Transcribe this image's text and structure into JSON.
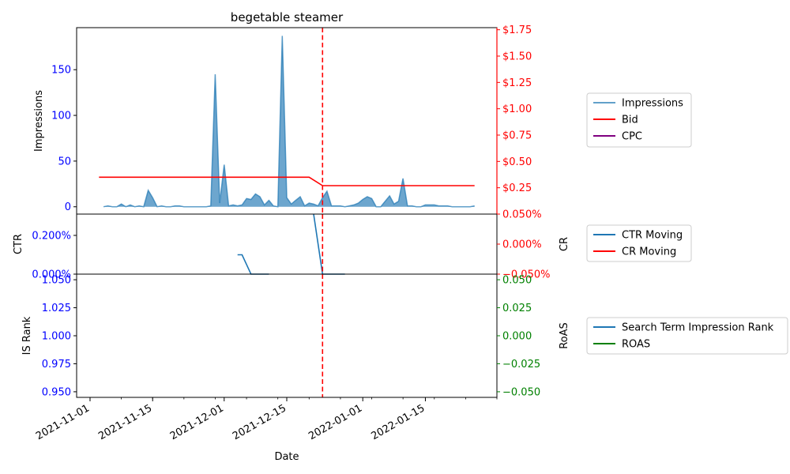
{
  "chart_data": {
    "title": "begetable steamer",
    "xlabel": "Date",
    "x_ticks": [
      "2021-11-01",
      "2021-11-15",
      "2021-12-01",
      "2021-12-15",
      "2022-01-01",
      "2022-01-15"
    ],
    "x_range": [
      "2021-11-01",
      "2022-01-31"
    ],
    "event_line_date": "2021-12-23",
    "colors": {
      "impressions": "#1f77b4",
      "bid": "#ff0000",
      "cpc": "#800080",
      "ctr": "#1f77b4",
      "cr": "#ff0000",
      "is_rank": "#1f77b4",
      "roas": "#008000",
      "left_axis": "#0000ff",
      "right_axis_top": "#ff0000",
      "right_axis_bottom": "#008000",
      "event_line": "#ff0000"
    },
    "panels": [
      {
        "type": "area+line",
        "ylabel_left": "Impressions",
        "ylim_left": [
          -8,
          196
        ],
        "yticks_left": [
          0,
          50,
          100,
          150
        ],
        "ylim_right": [
          0,
          1.77
        ],
        "yticks_right": [
          "$0.25",
          "$0.50",
          "$0.75",
          "$1.00",
          "$1.25",
          "$1.50",
          "$1.75"
        ],
        "yticks_right_values": [
          0.25,
          0.5,
          0.75,
          1.0,
          1.25,
          1.5,
          1.75
        ],
        "legend": [
          "Impressions",
          "Bid",
          "CPC"
        ],
        "legend_placement": "outside-right",
        "series": [
          {
            "name": "Impressions",
            "type": "area",
            "points": [
              [
                "2021-11-04",
                0
              ],
              [
                "2021-11-05",
                1
              ],
              [
                "2021-11-06",
                0
              ],
              [
                "2021-11-07",
                0
              ],
              [
                "2021-11-08",
                3
              ],
              [
                "2021-11-09",
                0
              ],
              [
                "2021-11-10",
                2
              ],
              [
                "2021-11-11",
                0
              ],
              [
                "2021-11-12",
                1
              ],
              [
                "2021-11-13",
                0
              ],
              [
                "2021-11-14",
                18
              ],
              [
                "2021-11-15",
                10
              ],
              [
                "2021-11-16",
                0
              ],
              [
                "2021-11-17",
                1
              ],
              [
                "2021-11-18",
                0
              ],
              [
                "2021-11-19",
                0
              ],
              [
                "2021-11-20",
                1
              ],
              [
                "2021-11-21",
                1
              ],
              [
                "2021-11-22",
                0
              ],
              [
                "2021-11-23",
                0
              ],
              [
                "2021-11-24",
                0
              ],
              [
                "2021-11-25",
                0
              ],
              [
                "2021-11-26",
                0
              ],
              [
                "2021-11-27",
                0
              ],
              [
                "2021-11-28",
                1
              ],
              [
                "2021-11-29",
                145
              ],
              [
                "2021-11-30",
                4
              ],
              [
                "2021-12-01",
                46
              ],
              [
                "2021-12-02",
                1
              ],
              [
                "2021-12-03",
                2
              ],
              [
                "2021-12-04",
                1
              ],
              [
                "2021-12-05",
                2
              ],
              [
                "2021-12-06",
                9
              ],
              [
                "2021-12-07",
                8
              ],
              [
                "2021-12-08",
                14
              ],
              [
                "2021-12-09",
                11
              ],
              [
                "2021-12-10",
                2
              ],
              [
                "2021-12-11",
                7
              ],
              [
                "2021-12-12",
                1
              ],
              [
                "2021-12-13",
                0
              ],
              [
                "2021-12-14",
                187
              ],
              [
                "2021-12-15",
                10
              ],
              [
                "2021-12-16",
                3
              ],
              [
                "2021-12-17",
                7
              ],
              [
                "2021-12-18",
                11
              ],
              [
                "2021-12-19",
                1
              ],
              [
                "2021-12-20",
                4
              ],
              [
                "2021-12-21",
                3
              ],
              [
                "2021-12-22",
                1
              ],
              [
                "2021-12-23",
                10
              ],
              [
                "2021-12-24",
                17
              ],
              [
                "2021-12-25",
                1
              ],
              [
                "2021-12-26",
                1
              ],
              [
                "2021-12-27",
                1
              ],
              [
                "2021-12-28",
                0
              ],
              [
                "2021-12-29",
                1
              ],
              [
                "2021-12-30",
                2
              ],
              [
                "2021-12-31",
                4
              ],
              [
                "2022-01-01",
                8
              ],
              [
                "2022-01-02",
                11
              ],
              [
                "2022-01-03",
                9
              ],
              [
                "2022-01-04",
                0
              ],
              [
                "2022-01-05",
                0
              ],
              [
                "2022-01-06",
                6
              ],
              [
                "2022-01-07",
                12
              ],
              [
                "2022-01-08",
                3
              ],
              [
                "2022-01-09",
                6
              ],
              [
                "2022-01-10",
                31
              ],
              [
                "2022-01-11",
                1
              ],
              [
                "2022-01-12",
                1
              ],
              [
                "2022-01-13",
                0
              ],
              [
                "2022-01-14",
                0
              ],
              [
                "2022-01-15",
                2
              ],
              [
                "2022-01-16",
                2
              ],
              [
                "2022-01-17",
                2
              ],
              [
                "2022-01-18",
                1
              ],
              [
                "2022-01-19",
                1
              ],
              [
                "2022-01-20",
                1
              ],
              [
                "2022-01-21",
                0
              ],
              [
                "2022-01-22",
                0
              ],
              [
                "2022-01-23",
                0
              ],
              [
                "2022-01-24",
                0
              ],
              [
                "2022-01-25",
                0
              ],
              [
                "2022-01-26",
                1
              ]
            ]
          },
          {
            "name": "Bid",
            "type": "line",
            "axis": "right",
            "points": [
              [
                "2021-11-03",
                0.35
              ],
              [
                "2021-12-20",
                0.35
              ],
              [
                "2021-12-23",
                0.27
              ],
              [
                "2022-01-26",
                0.27
              ]
            ]
          },
          {
            "name": "CPC",
            "type": "line",
            "axis": "right",
            "points": []
          }
        ]
      },
      {
        "type": "line",
        "ylabel_left": "CTR",
        "ylim_left": [
          0,
          0.31
        ],
        "yticks_left": [
          "0.000%",
          "0.200%"
        ],
        "yticks_left_values": [
          0,
          0.2
        ],
        "ylabel_right": "CR",
        "ylim_right": [
          -0.05,
          0.05
        ],
        "yticks_right": [
          "−0.050%",
          "0.000%",
          "0.050%"
        ],
        "yticks_right_values": [
          -0.05,
          0,
          0.05
        ],
        "legend": [
          "CTR Moving",
          "CR Moving"
        ],
        "legend_placement": "outside-right",
        "series": [
          {
            "name": "CTR Moving",
            "segments": [
              [
                [
                  "2021-12-04",
                  0.1
                ],
                [
                  "2021-12-05",
                  0.1
                ],
                [
                  "2021-12-07",
                  0
                ],
                [
                  "2021-12-11",
                  0
                ]
              ],
              [
                [
                  "2021-12-21",
                  0.31
                ],
                [
                  "2021-12-23",
                  0
                ],
                [
                  "2021-12-28",
                  0
                ]
              ]
            ]
          },
          {
            "name": "CR Moving",
            "segments": []
          }
        ]
      },
      {
        "type": "line",
        "ylabel_left": "IS Rank",
        "ylim_left": [
          0.945,
          1.055
        ],
        "yticks_left": [
          "0.950",
          "0.975",
          "1.000",
          "1.025",
          "1.050"
        ],
        "yticks_left_values": [
          0.95,
          0.975,
          1.0,
          1.025,
          1.05
        ],
        "ylabel_right": "RoAS",
        "ylim_right": [
          -0.055,
          0.055
        ],
        "yticks_right": [
          "−0.050",
          "−0.025",
          "0.000",
          "0.025",
          "0.050"
        ],
        "yticks_right_values": [
          -0.05,
          -0.025,
          0,
          0.025,
          0.05
        ],
        "legend": [
          "Search Term Impression Rank",
          "ROAS"
        ],
        "legend_placement": "outside-right",
        "series": [
          {
            "name": "Search Term Impression Rank",
            "segments": []
          },
          {
            "name": "ROAS",
            "segments": []
          }
        ]
      }
    ]
  }
}
